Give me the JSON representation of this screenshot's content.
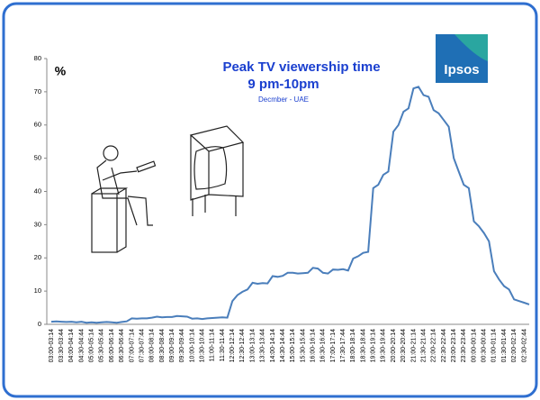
{
  "chart_data": {
    "type": "line",
    "title": "Peak TV viewership time",
    "subtitle": "9 pm-10pm",
    "note": "Decmber - UAE",
    "y_label": "%",
    "logo": "Ipsos",
    "categories": [
      "03:00-03:14",
      null,
      "03:30-03:44",
      null,
      "04:00-04:14",
      null,
      "04:30-04:44",
      null,
      "05:00-05:14",
      null,
      "05:30-05:44",
      null,
      "06:00-06:14",
      null,
      "06:30-06:44",
      null,
      "07:00-07:14",
      null,
      "07:30-07:44",
      null,
      "08:00-08:14",
      null,
      "08:30-08:44",
      null,
      "09:00-09:14",
      null,
      "09:30-09:44",
      null,
      "10:00-10:14",
      null,
      "10:30-10:44",
      null,
      "11:00-11:14",
      null,
      "11:30-11:44",
      null,
      "12:00-12:14",
      null,
      "12:30-12:44",
      null,
      "13:00-13:14",
      null,
      "13:30-13:44",
      null,
      "14:00-14:14",
      null,
      "14:30-14:44",
      null,
      "15:00-15:14",
      null,
      "15:30-15:44",
      null,
      "16:00-16:14",
      null,
      "16:30-16:44",
      null,
      "17:00-17:14",
      null,
      "17:30-17:44",
      null,
      "18:00-18:14",
      null,
      "18:30-18:44",
      null,
      "19:00-19:14",
      null,
      "19:30-19:44",
      null,
      "20:00-20:14",
      null,
      "20:30-20:44",
      null,
      "21:00-21:14",
      null,
      "21:30-21:44",
      null,
      "22:00-22:14",
      null,
      "22:30-22:44",
      null,
      "23:00-23:14",
      null,
      "23:30-23:44",
      null,
      "00:00-00:14",
      null,
      "00:30-00:44",
      null,
      "01:00-01:14",
      null,
      "01:30-01:44",
      null,
      "02:00-02:14",
      null,
      "02:30-02:44",
      null
    ],
    "values": [
      0.8,
      0.9,
      0.8,
      0.7,
      0.8,
      0.6,
      0.8,
      0.5,
      0.6,
      0.5,
      0.6,
      0.7,
      0.6,
      0.5,
      0.7,
      0.9,
      1.8,
      1.7,
      1.8,
      1.8,
      2.0,
      2.3,
      2.1,
      2.2,
      2.2,
      2.5,
      2.4,
      2.3,
      1.7,
      1.8,
      1.6,
      1.8,
      1.9,
      2.0,
      2.1,
      2.0,
      7.0,
      8.8,
      9.8,
      10.5,
      12.5,
      12.2,
      12.4,
      12.3,
      14.5,
      14.3,
      14.6,
      15.5,
      15.5,
      15.3,
      15.4,
      15.5,
      17.0,
      16.8,
      15.5,
      15.3,
      16.5,
      16.4,
      16.6,
      16.2,
      19.8,
      20.5,
      21.5,
      21.8,
      41.0,
      42.0,
      45.0,
      46.0,
      58.0,
      60.0,
      64.0,
      65.0,
      71.0,
      71.5,
      69.0,
      68.5,
      64.5,
      63.5,
      61.5,
      59.5,
      50.0,
      46.0,
      42.0,
      41.0,
      31.0,
      29.5,
      27.5,
      25.0,
      16.0,
      13.5,
      11.5,
      10.5,
      7.5,
      7.0,
      6.5,
      6.0
    ],
    "color": "#4a7ebb",
    "ylim": [
      0,
      80
    ],
    "yticks": [
      0,
      10,
      20,
      30,
      40,
      50,
      60,
      70,
      80
    ],
    "grid": false
  }
}
